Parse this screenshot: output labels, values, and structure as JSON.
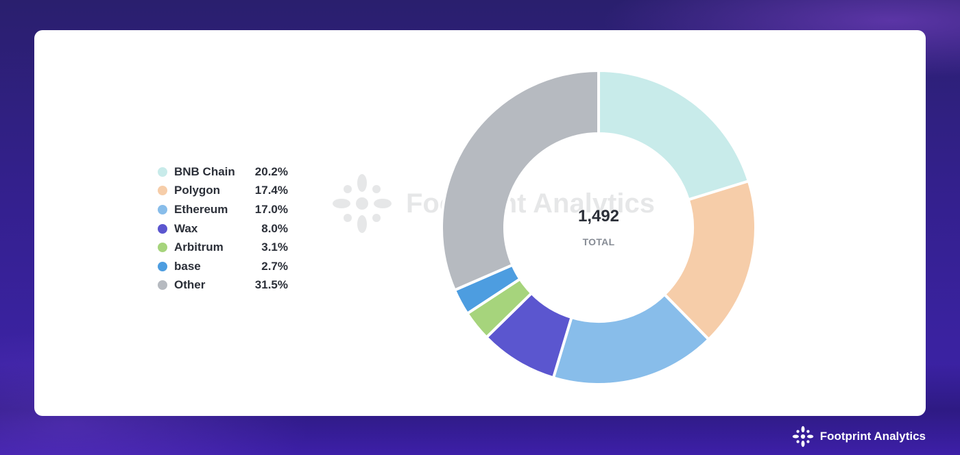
{
  "brand": {
    "name": "Footprint Analytics",
    "watermark": "Footprint Analytics"
  },
  "chart_data": {
    "type": "pie",
    "variant": "donut",
    "center_value": "1,492",
    "center_label": "TOTAL",
    "legend_placement": "left",
    "slices": [
      {
        "label": "BNB Chain",
        "value": 20.2,
        "display": "20.2%",
        "color": "#c8ebea"
      },
      {
        "label": "Polygon",
        "value": 17.4,
        "display": "17.4%",
        "color": "#f6cda9"
      },
      {
        "label": "Ethereum",
        "value": 17.0,
        "display": "17.0%",
        "color": "#88bdea"
      },
      {
        "label": "Wax",
        "value": 8.0,
        "display": "8.0%",
        "color": "#5b56cf"
      },
      {
        "label": "Arbitrum",
        "value": 3.1,
        "display": "3.1%",
        "color": "#a6d47c"
      },
      {
        "label": "base",
        "value": 2.7,
        "display": "2.7%",
        "color": "#4d9de0"
      },
      {
        "label": "Other",
        "value": 31.5,
        "display": "31.5%",
        "color": "#b6bac0"
      }
    ]
  }
}
